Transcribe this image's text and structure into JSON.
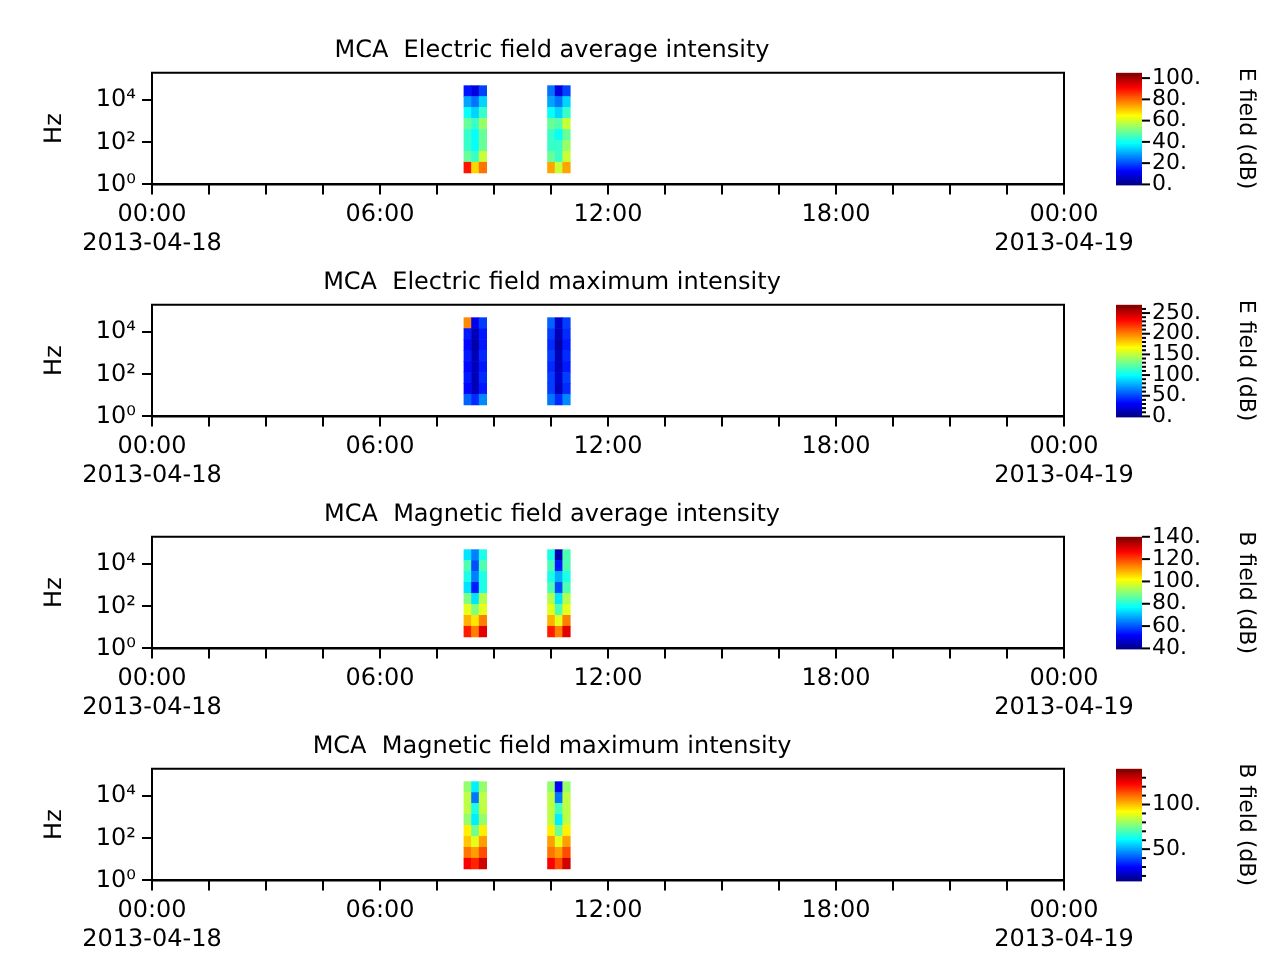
{
  "chart_data": [
    {
      "type": "heatmap",
      "title": "MCA  Electric field average intensity",
      "ylabel": "Hz",
      "clabel": "E field (dB)",
      "log": "y",
      "grid": false,
      "xlim": [
        0,
        24
      ],
      "xticks": [
        {
          "value": 0,
          "label": "00:00\n2013-04-18"
        },
        {
          "value": 1.5,
          "label": null
        },
        {
          "value": 3,
          "label": null
        },
        {
          "value": 4.5,
          "label": null
        },
        {
          "value": 6,
          "label": "06:00"
        },
        {
          "value": 7.5,
          "label": null
        },
        {
          "value": 9,
          "label": null
        },
        {
          "value": 10.5,
          "label": null
        },
        {
          "value": 12,
          "label": "12:00"
        },
        {
          "value": 13.5,
          "label": null
        },
        {
          "value": 15,
          "label": null
        },
        {
          "value": 16.5,
          "label": null
        },
        {
          "value": 18,
          "label": "18:00"
        },
        {
          "value": 19.5,
          "label": null
        },
        {
          "value": 21,
          "label": null
        },
        {
          "value": 22.5,
          "label": null
        },
        {
          "value": 24,
          "label": "00:00\n2013-04-19"
        }
      ],
      "ylim": [
        1,
        200000
      ],
      "yticks": [
        {
          "value": 1,
          "label": "10⁰"
        },
        {
          "value": 100,
          "label": "10²"
        },
        {
          "value": 10000,
          "label": "10⁴"
        }
      ],
      "x": [
        8.3,
        8.5,
        8.7,
        8.9,
        9.1,
        9.3,
        9.5,
        9.7,
        9.9,
        10.1,
        10.3,
        10.5,
        10.7,
        10.9
      ],
      "y": [
        28000,
        8500,
        2600,
        780,
        230,
        71,
        21,
        6.5
      ],
      "cells": [
        [
          15,
          10,
          20,
          null,
          null,
          null,
          null,
          null,
          null,
          null,
          null,
          25,
          10,
          20
        ],
        [
          30,
          25,
          35,
          null,
          null,
          null,
          null,
          null,
          null,
          null,
          null,
          30,
          25,
          35
        ],
        [
          40,
          35,
          45,
          null,
          null,
          null,
          null,
          null,
          null,
          null,
          null,
          40,
          35,
          45
        ],
        [
          50,
          45,
          55,
          null,
          null,
          null,
          null,
          null,
          null,
          null,
          null,
          50,
          48,
          60
        ],
        [
          45,
          40,
          50,
          null,
          null,
          null,
          null,
          null,
          null,
          null,
          null,
          45,
          40,
          50
        ],
        [
          45,
          40,
          50,
          null,
          null,
          null,
          null,
          null,
          null,
          null,
          null,
          45,
          45,
          55
        ],
        [
          50,
          45,
          60,
          null,
          null,
          null,
          null,
          null,
          null,
          null,
          null,
          50,
          45,
          60
        ],
        [
          90,
          70,
          80,
          null,
          null,
          null,
          null,
          null,
          null,
          null,
          null,
          75,
          60,
          75
        ]
      ],
      "clim": [
        0,
        105
      ],
      "cticks": [
        {
          "value": 0,
          "label": "0."
        },
        {
          "value": 20,
          "label": "20."
        },
        {
          "value": 40,
          "label": "40."
        },
        {
          "value": 60,
          "label": "60."
        },
        {
          "value": 80,
          "label": "80."
        },
        {
          "value": 100,
          "label": "100."
        }
      ]
    },
    {
      "type": "heatmap",
      "title": "MCA  Electric field maximum intensity",
      "ylabel": "Hz",
      "clabel": "E field (dB)",
      "log": "y",
      "grid": false,
      "xlim": [
        0,
        24
      ],
      "xticks": [
        {
          "value": 0,
          "label": "00:00\n2013-04-18"
        },
        {
          "value": 1.5,
          "label": null
        },
        {
          "value": 3,
          "label": null
        },
        {
          "value": 4.5,
          "label": null
        },
        {
          "value": 6,
          "label": "06:00"
        },
        {
          "value": 7.5,
          "label": null
        },
        {
          "value": 9,
          "label": null
        },
        {
          "value": 10.5,
          "label": null
        },
        {
          "value": 12,
          "label": "12:00"
        },
        {
          "value": 13.5,
          "label": null
        },
        {
          "value": 15,
          "label": null
        },
        {
          "value": 16.5,
          "label": null
        },
        {
          "value": 18,
          "label": "18:00"
        },
        {
          "value": 19.5,
          "label": null
        },
        {
          "value": 21,
          "label": null
        },
        {
          "value": 22.5,
          "label": null
        },
        {
          "value": 24,
          "label": "00:00\n2013-04-19"
        }
      ],
      "ylim": [
        1,
        200000
      ],
      "yticks": [
        {
          "value": 1,
          "label": "10⁰"
        },
        {
          "value": 100,
          "label": "10²"
        },
        {
          "value": 10000,
          "label": "10⁴"
        }
      ],
      "x": [
        8.3,
        8.5,
        8.7,
        8.9,
        9.1,
        9.3,
        9.5,
        9.7,
        9.9,
        10.1,
        10.3,
        10.5,
        10.7,
        10.9
      ],
      "y": [
        28000,
        8500,
        2600,
        780,
        230,
        71,
        21,
        6.5
      ],
      "cells": [
        [
          200,
          30,
          50,
          null,
          null,
          null,
          null,
          null,
          null,
          null,
          null,
          60,
          20,
          50
        ],
        [
          40,
          15,
          40,
          null,
          null,
          null,
          null,
          null,
          null,
          null,
          null,
          50,
          15,
          45
        ],
        [
          35,
          10,
          40,
          null,
          null,
          null,
          null,
          null,
          null,
          null,
          null,
          45,
          10,
          40
        ],
        [
          40,
          15,
          45,
          null,
          null,
          null,
          null,
          null,
          null,
          null,
          null,
          50,
          15,
          45
        ],
        [
          35,
          15,
          40,
          null,
          null,
          null,
          null,
          null,
          null,
          null,
          null,
          45,
          15,
          40
        ],
        [
          40,
          15,
          45,
          null,
          null,
          null,
          null,
          null,
          null,
          null,
          null,
          50,
          20,
          50
        ],
        [
          35,
          15,
          40,
          null,
          null,
          null,
          null,
          null,
          null,
          null,
          null,
          50,
          15,
          45
        ],
        [
          60,
          45,
          70,
          null,
          null,
          null,
          null,
          null,
          null,
          null,
          null,
          65,
          45,
          70
        ]
      ],
      "clim": [
        0,
        270
      ],
      "cticks": [
        {
          "value": 0,
          "label": "0."
        },
        {
          "value": 10,
          "label": null
        },
        {
          "value": 20,
          "label": null
        },
        {
          "value": 30,
          "label": null
        },
        {
          "value": 40,
          "label": null
        },
        {
          "value": 50,
          "label": "50."
        },
        {
          "value": 60,
          "label": null
        },
        {
          "value": 70,
          "label": null
        },
        {
          "value": 80,
          "label": null
        },
        {
          "value": 90,
          "label": null
        },
        {
          "value": 100,
          "label": "100."
        },
        {
          "value": 110,
          "label": null
        },
        {
          "value": 120,
          "label": null
        },
        {
          "value": 130,
          "label": null
        },
        {
          "value": 140,
          "label": null
        },
        {
          "value": 150,
          "label": "150."
        },
        {
          "value": 160,
          "label": null
        },
        {
          "value": 170,
          "label": null
        },
        {
          "value": 180,
          "label": null
        },
        {
          "value": 190,
          "label": null
        },
        {
          "value": 200,
          "label": "200."
        },
        {
          "value": 210,
          "label": null
        },
        {
          "value": 220,
          "label": null
        },
        {
          "value": 230,
          "label": null
        },
        {
          "value": 240,
          "label": null
        },
        {
          "value": 250,
          "label": "250."
        },
        {
          "value": 260,
          "label": null
        }
      ]
    },
    {
      "type": "heatmap",
      "title": "MCA  Magnetic field average intensity",
      "ylabel": "Hz",
      "clabel": "B field (dB)",
      "log": "y",
      "grid": false,
      "xlim": [
        0,
        24
      ],
      "xticks": [
        {
          "value": 0,
          "label": "00:00\n2013-04-18"
        },
        {
          "value": 1.5,
          "label": null
        },
        {
          "value": 3,
          "label": null
        },
        {
          "value": 4.5,
          "label": null
        },
        {
          "value": 6,
          "label": "06:00"
        },
        {
          "value": 7.5,
          "label": null
        },
        {
          "value": 9,
          "label": null
        },
        {
          "value": 10.5,
          "label": null
        },
        {
          "value": 12,
          "label": "12:00"
        },
        {
          "value": 13.5,
          "label": null
        },
        {
          "value": 15,
          "label": null
        },
        {
          "value": 16.5,
          "label": null
        },
        {
          "value": 18,
          "label": "18:00"
        },
        {
          "value": 19.5,
          "label": null
        },
        {
          "value": 21,
          "label": null
        },
        {
          "value": 22.5,
          "label": null
        },
        {
          "value": 24,
          "label": "00:00\n2013-04-19"
        }
      ],
      "ylim": [
        1,
        200000
      ],
      "yticks": [
        {
          "value": 1,
          "label": "10⁰"
        },
        {
          "value": 100,
          "label": "10²"
        },
        {
          "value": 10000,
          "label": "10⁴"
        }
      ],
      "x": [
        8.3,
        8.5,
        8.7,
        8.9,
        9.1,
        9.3,
        9.5,
        9.7,
        9.9,
        10.1,
        10.3,
        10.5,
        10.7,
        10.9
      ],
      "y": [
        28000,
        8500,
        2600,
        780,
        230,
        71,
        21,
        6.5
      ],
      "cells": [
        [
          75,
          65,
          80,
          null,
          null,
          null,
          null,
          null,
          null,
          null,
          null,
          80,
          45,
          85
        ],
        [
          85,
          60,
          85,
          null,
          null,
          null,
          null,
          null,
          null,
          null,
          null,
          85,
          55,
          85
        ],
        [
          80,
          65,
          80,
          null,
          null,
          null,
          null,
          null,
          null,
          null,
          null,
          80,
          70,
          80
        ],
        [
          75,
          55,
          80,
          null,
          null,
          null,
          null,
          null,
          null,
          null,
          null,
          85,
          60,
          85
        ],
        [
          90,
          75,
          95,
          null,
          null,
          null,
          null,
          null,
          null,
          null,
          null,
          95,
          75,
          95
        ],
        [
          100,
          90,
          100,
          null,
          null,
          null,
          null,
          null,
          null,
          null,
          null,
          100,
          85,
          100
        ],
        [
          110,
          105,
          115,
          null,
          null,
          null,
          null,
          null,
          null,
          null,
          null,
          110,
          100,
          115
        ],
        [
          125,
          115,
          130,
          null,
          null,
          null,
          null,
          null,
          null,
          null,
          null,
          125,
          115,
          130
        ]
      ],
      "clim": [
        40,
        140
      ],
      "cticks": [
        {
          "value": 40,
          "label": "40."
        },
        {
          "value": 60,
          "label": "60."
        },
        {
          "value": 80,
          "label": "80."
        },
        {
          "value": 100,
          "label": "100."
        },
        {
          "value": 120,
          "label": "120."
        },
        {
          "value": 140,
          "label": "140."
        }
      ]
    },
    {
      "type": "heatmap",
      "title": "MCA  Magnetic field maximum intensity",
      "ylabel": "Hz",
      "clabel": "B field (dB)",
      "log": "y",
      "grid": false,
      "xlim": [
        0,
        24
      ],
      "xticks": [
        {
          "value": 0,
          "label": "00:00\n2013-04-18"
        },
        {
          "value": 1.5,
          "label": null
        },
        {
          "value": 3,
          "label": null
        },
        {
          "value": 4.5,
          "label": null
        },
        {
          "value": 6,
          "label": "06:00"
        },
        {
          "value": 7.5,
          "label": null
        },
        {
          "value": 9,
          "label": null
        },
        {
          "value": 10.5,
          "label": null
        },
        {
          "value": 12,
          "label": "12:00"
        },
        {
          "value": 13.5,
          "label": null
        },
        {
          "value": 15,
          "label": null
        },
        {
          "value": 16.5,
          "label": null
        },
        {
          "value": 18,
          "label": "18:00"
        },
        {
          "value": 19.5,
          "label": null
        },
        {
          "value": 21,
          "label": null
        },
        {
          "value": 22.5,
          "label": null
        },
        {
          "value": 24,
          "label": "00:00\n2013-04-19"
        }
      ],
      "ylim": [
        1,
        200000
      ],
      "yticks": [
        {
          "value": 1,
          "label": "10⁰"
        },
        {
          "value": 100,
          "label": "10²"
        },
        {
          "value": 10000,
          "label": "10⁴"
        }
      ],
      "x": [
        8.3,
        8.5,
        8.7,
        8.9,
        9.1,
        9.3,
        9.5,
        9.7,
        9.9,
        10.1,
        10.3,
        10.5,
        10.7,
        10.9
      ],
      "y": [
        28000,
        8500,
        2600,
        780,
        230,
        71,
        21,
        6.5
      ],
      "cells": [
        [
          80,
          60,
          80,
          null,
          null,
          null,
          null,
          null,
          null,
          null,
          null,
          80,
          30,
          80
        ],
        [
          85,
          45,
          85,
          null,
          null,
          null,
          null,
          null,
          null,
          null,
          null,
          85,
          45,
          85
        ],
        [
          85,
          65,
          85,
          null,
          null,
          null,
          null,
          null,
          null,
          null,
          null,
          85,
          70,
          85
        ],
        [
          80,
          60,
          80,
          null,
          null,
          null,
          null,
          null,
          null,
          null,
          null,
          85,
          60,
          85
        ],
        [
          95,
          75,
          95,
          null,
          null,
          null,
          null,
          null,
          null,
          null,
          null,
          95,
          75,
          95
        ],
        [
          100,
          90,
          105,
          null,
          null,
          null,
          null,
          null,
          null,
          null,
          null,
          105,
          90,
          105
        ],
        [
          110,
          105,
          115,
          null,
          null,
          null,
          null,
          null,
          null,
          null,
          null,
          110,
          105,
          115
        ],
        [
          125,
          120,
          130,
          null,
          null,
          null,
          null,
          null,
          null,
          null,
          null,
          125,
          115,
          130
        ]
      ],
      "clim": [
        15,
        140
      ],
      "cticks": [
        {
          "value": 20,
          "label": null
        },
        {
          "value": 30,
          "label": null
        },
        {
          "value": 40,
          "label": null
        },
        {
          "value": 50,
          "label": "50."
        },
        {
          "value": 60,
          "label": null
        },
        {
          "value": 70,
          "label": null
        },
        {
          "value": 80,
          "label": null
        },
        {
          "value": 90,
          "label": null
        },
        {
          "value": 100,
          "label": "100."
        },
        {
          "value": 110,
          "label": null
        },
        {
          "value": 120,
          "label": null
        },
        {
          "value": 130,
          "label": null
        }
      ]
    }
  ]
}
